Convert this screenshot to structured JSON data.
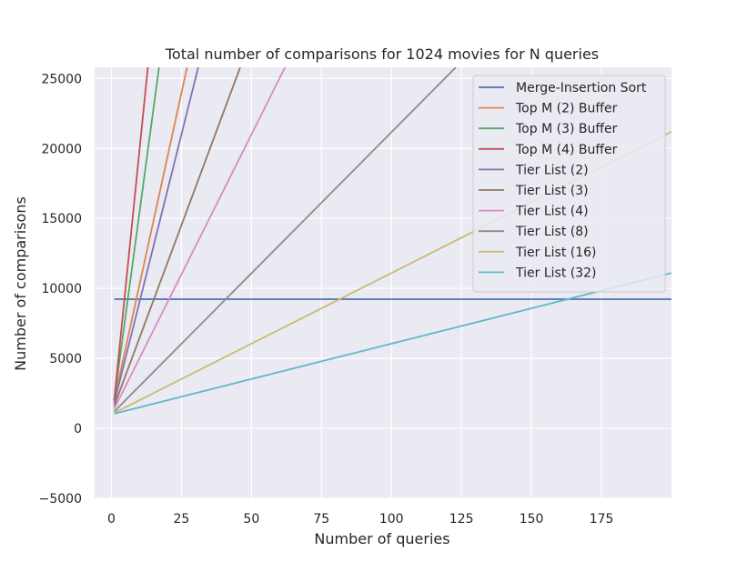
{
  "chart_data": {
    "type": "line",
    "title": "Total number of comparisons for 1024 movies for N queries",
    "xlabel": "Number of queries",
    "ylabel": "Number of comparisons",
    "xlim": [
      -6,
      200
    ],
    "ylim": [
      -5000,
      25800
    ],
    "xticks": [
      0,
      25,
      50,
      75,
      100,
      125,
      150,
      175
    ],
    "xtick_labels": [
      "0",
      "25",
      "50",
      "75",
      "100",
      "125",
      "150",
      "175"
    ],
    "yticks": [
      -5000,
      0,
      5000,
      10000,
      15000,
      20000,
      25000
    ],
    "ytick_labels": [
      "−5000",
      "0",
      "5000",
      "10000",
      "15000",
      "20000",
      "25000"
    ],
    "grid": true,
    "background": "#eaeaf2",
    "legend_position": "top-right",
    "series": [
      {
        "name": "Merge-Insertion Sort",
        "color": "#4c72b0",
        "x": [
          1,
          200
        ],
        "y": [
          9230,
          9230
        ]
      },
      {
        "name": "Top M (2) Buffer",
        "color": "#dd8452",
        "x": [
          1,
          27
        ],
        "y": [
          2000,
          25800
        ]
      },
      {
        "name": "Top M (3) Buffer",
        "color": "#55a868",
        "x": [
          1,
          17
        ],
        "y": [
          2000,
          25800
        ]
      },
      {
        "name": "Top M (4) Buffer",
        "color": "#c44e52",
        "x": [
          1,
          13
        ],
        "y": [
          2000,
          25800
        ]
      },
      {
        "name": "Tier List (2)",
        "color": "#8172b3",
        "x": [
          1,
          31
        ],
        "y": [
          1800,
          25800
        ]
      },
      {
        "name": "Tier List (3)",
        "color": "#937860",
        "x": [
          1,
          46
        ],
        "y": [
          1600,
          25800
        ]
      },
      {
        "name": "Tier List (4)",
        "color": "#da8bc3",
        "x": [
          1,
          62
        ],
        "y": [
          1400,
          25800
        ]
      },
      {
        "name": "Tier List (8)",
        "color": "#8c8c8c",
        "x": [
          1,
          123
        ],
        "y": [
          1200,
          25800
        ]
      },
      {
        "name": "Tier List (16)",
        "color": "#ccb974",
        "x": [
          1,
          200
        ],
        "y": [
          1100,
          21200
        ]
      },
      {
        "name": "Tier List (32)",
        "color": "#64b5cd",
        "x": [
          1,
          200
        ],
        "y": [
          1050,
          11100
        ]
      }
    ]
  }
}
